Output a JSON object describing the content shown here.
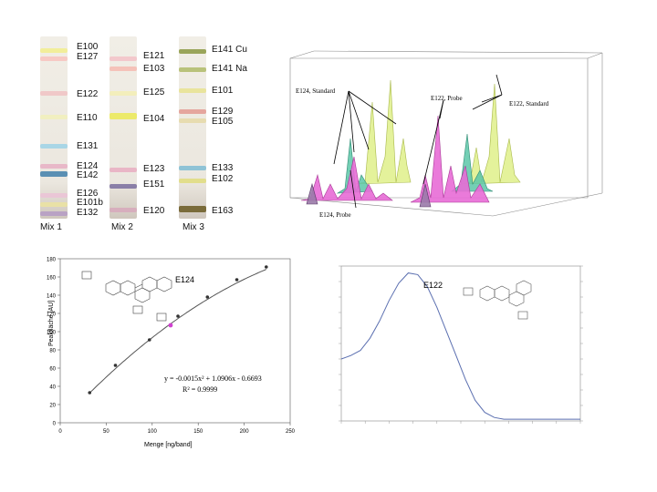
{
  "tlc": {
    "mix1": {
      "label": "Mix 1",
      "codes": [
        "E100",
        "E127",
        "E122",
        "E110",
        "E131",
        "E124",
        "E142",
        "E126",
        "E101b",
        "E132"
      ]
    },
    "mix2": {
      "label": "Mix 2",
      "codes": [
        "E121",
        "E103",
        "E125",
        "E104",
        "E123",
        "E151",
        "E120"
      ]
    },
    "mix3": {
      "label": "Mix 3",
      "codes": [
        "E141 Cu",
        "E141 Na",
        "E101",
        "E129",
        "E105",
        "E133",
        "E102",
        "E163"
      ]
    }
  },
  "spectra3d": {
    "annotations": [
      "E124, Standard",
      "E122, Probe",
      "E122, Standard",
      "E124, Probe"
    ],
    "colors": {
      "pink": "#e86bd6",
      "teal": "#5cc7a8",
      "yellow": "#d9ef7a",
      "purple": "#9a7aa8"
    }
  },
  "calibration": {
    "compound": "E124",
    "equation": "y = -0.0015x² + 1.0906x - 0.6693",
    "r2": "R² = 0.9999",
    "chart_data": {
      "type": "scatter",
      "title": "",
      "xlabel": "Menge [ng/band]",
      "ylabel": "Peakfläche [AU]",
      "xlim": [
        0,
        250
      ],
      "ylim": [
        0,
        180
      ],
      "xticks": [
        0,
        50,
        100,
        150,
        200,
        250
      ],
      "yticks": [
        0,
        20,
        40,
        60,
        80,
        100,
        120,
        140,
        160,
        180
      ],
      "x": [
        32,
        60,
        97,
        128,
        160,
        192,
        224
      ],
      "y": [
        33,
        63,
        91,
        117,
        138,
        157,
        171
      ],
      "probe": {
        "x": 120,
        "y": 107
      }
    }
  },
  "spectrum": {
    "compound": "E122",
    "chart_data": {
      "type": "line",
      "title": "",
      "xlabel": "",
      "ylabel": "",
      "x": [
        200,
        220,
        240,
        260,
        280,
        300,
        320,
        340,
        360,
        380,
        400,
        420,
        440,
        460,
        480,
        500,
        520,
        540,
        560,
        580,
        600,
        620,
        640,
        660,
        680,
        700
      ],
      "y": [
        0.36,
        0.38,
        0.41,
        0.48,
        0.58,
        0.7,
        0.8,
        0.86,
        0.85,
        0.78,
        0.66,
        0.52,
        0.38,
        0.24,
        0.12,
        0.05,
        0.02,
        0.01,
        0.01,
        0.01,
        0.01,
        0.01,
        0.01,
        0.01,
        0.01,
        0.01
      ]
    }
  }
}
